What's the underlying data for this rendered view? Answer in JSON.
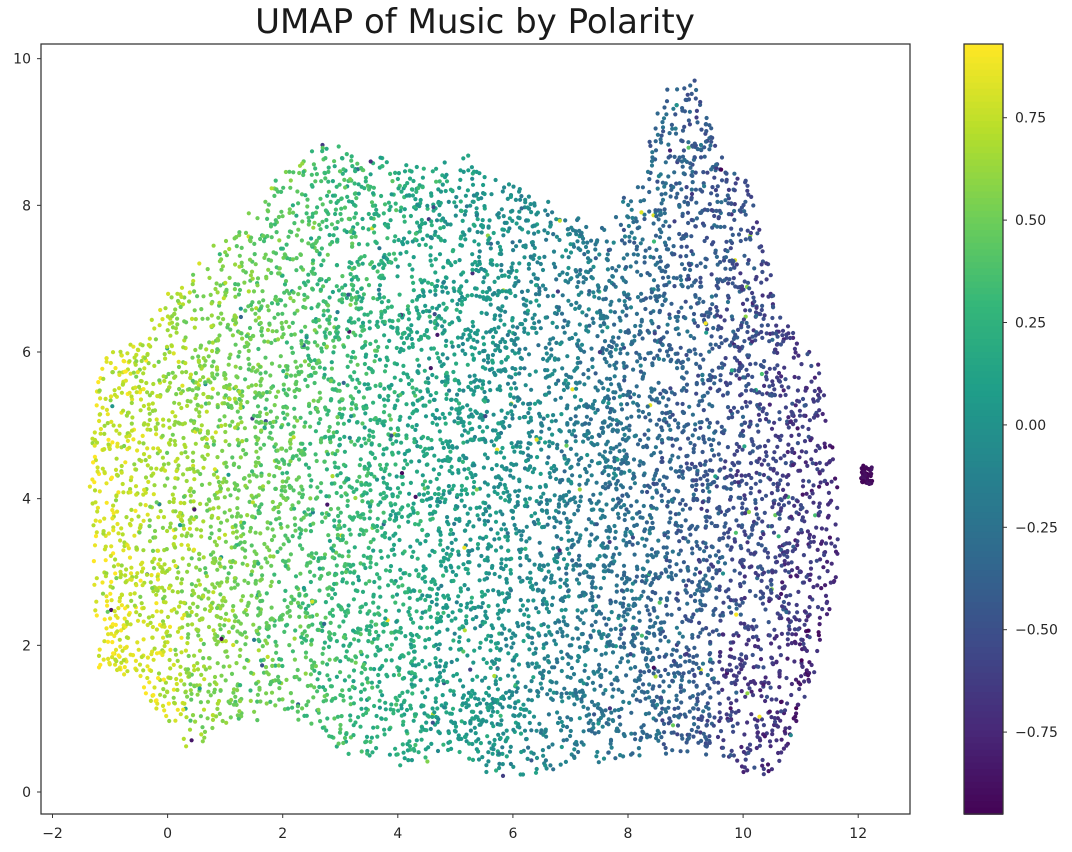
{
  "chart_data": {
    "type": "scatter",
    "title": "UMAP of Music by Polarity",
    "xlabel": "",
    "ylabel": "",
    "xlim": [
      -2.2,
      12.9
    ],
    "ylim": [
      -0.3,
      10.2
    ],
    "x_ticks": [
      -2,
      0,
      2,
      4,
      6,
      8,
      10,
      12
    ],
    "y_ticks": [
      0,
      2,
      4,
      6,
      8,
      10
    ],
    "x_tick_labels": [
      "−2",
      "0",
      "2",
      "4",
      "6",
      "8",
      "10",
      "12"
    ],
    "y_tick_labels": [
      "0",
      "2",
      "4",
      "6",
      "8",
      "10"
    ],
    "grid": false,
    "colormap": "viridis",
    "colorbar": {
      "range": [
        -0.95,
        0.93
      ],
      "ticks": [
        0.75,
        0.5,
        0.25,
        0.0,
        -0.25,
        -0.5,
        -0.75
      ],
      "tick_labels": [
        "0.75",
        "0.50",
        "0.25",
        "0.00",
        "−0.25",
        "−0.50",
        "−0.75"
      ]
    },
    "point_cloud": {
      "approx_count": 14000,
      "x_range": [
        -1.35,
        12.25
      ],
      "y_range": [
        0.15,
        9.75
      ],
      "polarity_trend": "high (about 0.8) on left, decreasing to about -0.8 on right",
      "regions": [
        {
          "name": "far-left band",
          "x": [
            -1.3,
            -0.3
          ],
          "y": [
            0.6,
            6.0
          ],
          "polarity": 0.8
        },
        {
          "name": "left body",
          "x": [
            -0.3,
            2.5
          ],
          "y": [
            0.5,
            8.8
          ],
          "polarity": 0.55
        },
        {
          "name": "center-left",
          "x": [
            2.5,
            5.0
          ],
          "y": [
            0.3,
            8.8
          ],
          "polarity": 0.3
        },
        {
          "name": "center",
          "x": [
            5.0,
            7.5
          ],
          "y": [
            0.2,
            8.6
          ],
          "polarity": 0.0
        },
        {
          "name": "center-right",
          "x": [
            7.5,
            9.8
          ],
          "y": [
            0.3,
            9.7
          ],
          "polarity": -0.3
        },
        {
          "name": "right edge",
          "x": [
            9.8,
            11.6
          ],
          "y": [
            0.2,
            6.5
          ],
          "polarity": -0.65
        },
        {
          "name": "outlier cluster",
          "x": [
            12.05,
            12.25
          ],
          "y": [
            4.2,
            4.45
          ],
          "polarity": -0.9
        }
      ]
    }
  }
}
